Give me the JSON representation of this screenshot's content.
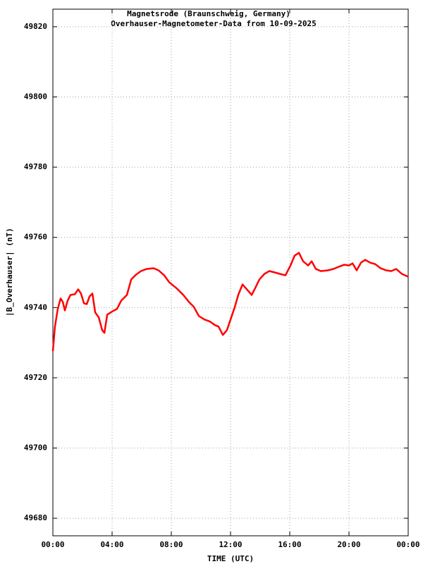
{
  "chart_data": {
    "type": "line",
    "title": "Magnetsrode (Braunschweig, Germany)",
    "subtitle": "Overhauser-Magnetometer-Data from 10-09-2025",
    "x_label": "TIME (UTC)",
    "y_label": "|B_Overhauser| (nT)",
    "color": "#ff0000",
    "grid": true,
    "xlim": [
      0,
      24
    ],
    "xticks": [
      {
        "value": 0,
        "label": "00:00"
      },
      {
        "value": 4,
        "label": "04:00"
      },
      {
        "value": 8,
        "label": "08:00"
      },
      {
        "value": 12,
        "label": "12:00"
      },
      {
        "value": 16,
        "label": "16:00"
      },
      {
        "value": 20,
        "label": "20:00"
      },
      {
        "value": 24,
        "label": "00:00"
      }
    ],
    "ylim": [
      49675,
      49825
    ],
    "yticks": [
      49680,
      49700,
      49720,
      49740,
      49760,
      49780,
      49800,
      49820
    ],
    "x": [
      0,
      0.14,
      0.33,
      0.52,
      0.67,
      0.81,
      1.0,
      1.19,
      1.48,
      1.71,
      1.9,
      2.1,
      2.29,
      2.48,
      2.67,
      2.86,
      3.1,
      3.33,
      3.48,
      3.67,
      4.05,
      4.33,
      4.62,
      5.0,
      5.29,
      5.62,
      5.95,
      6.33,
      6.81,
      7.14,
      7.52,
      7.86,
      8.33,
      8.81,
      9.19,
      9.52,
      9.86,
      10.24,
      10.62,
      10.95,
      11.19,
      11.48,
      11.76,
      12.0,
      12.29,
      12.52,
      12.81,
      13.1,
      13.43,
      13.67,
      13.95,
      14.29,
      14.62,
      15.0,
      15.33,
      15.71,
      16.05,
      16.33,
      16.62,
      16.9,
      17.24,
      17.48,
      17.76,
      18.1,
      18.57,
      18.95,
      19.29,
      19.67,
      20.0,
      20.24,
      20.52,
      20.81,
      21.1,
      21.43,
      21.76,
      22.14,
      22.52,
      22.86,
      23.19,
      23.57,
      24.0
    ],
    "values": [
      49727.6,
      49734.6,
      49739.6,
      49742.6,
      49741.6,
      49739.2,
      49742,
      49743.6,
      49743.8,
      49745.2,
      49744,
      49741.2,
      49741,
      49743.2,
      49744,
      49738.6,
      49737.2,
      49733.6,
      49732.8,
      49738,
      49739,
      49739.6,
      49742,
      49743.6,
      49748,
      49749.4,
      49750.4,
      49751,
      49751.2,
      49750.6,
      49749.2,
      49747.2,
      49745.6,
      49743.6,
      49741.6,
      49740.2,
      49737.6,
      49736.6,
      49736,
      49735,
      49734.6,
      49732.2,
      49733.6,
      49736.6,
      49740.2,
      49743.6,
      49746.6,
      49745.2,
      49743.6,
      49745.6,
      49748,
      49749.6,
      49750.4,
      49750,
      49749.6,
      49749.2,
      49752,
      49754.8,
      49755.6,
      49753.2,
      49752,
      49753.2,
      49751,
      49750.4,
      49750.6,
      49751,
      49751.6,
      49752.2,
      49752,
      49752.6,
      49750.6,
      49752.8,
      49753.6,
      49752.8,
      49752.4,
      49751.2,
      49750.6,
      49750.4,
      49751,
      49749.6,
      49748.8
    ]
  }
}
